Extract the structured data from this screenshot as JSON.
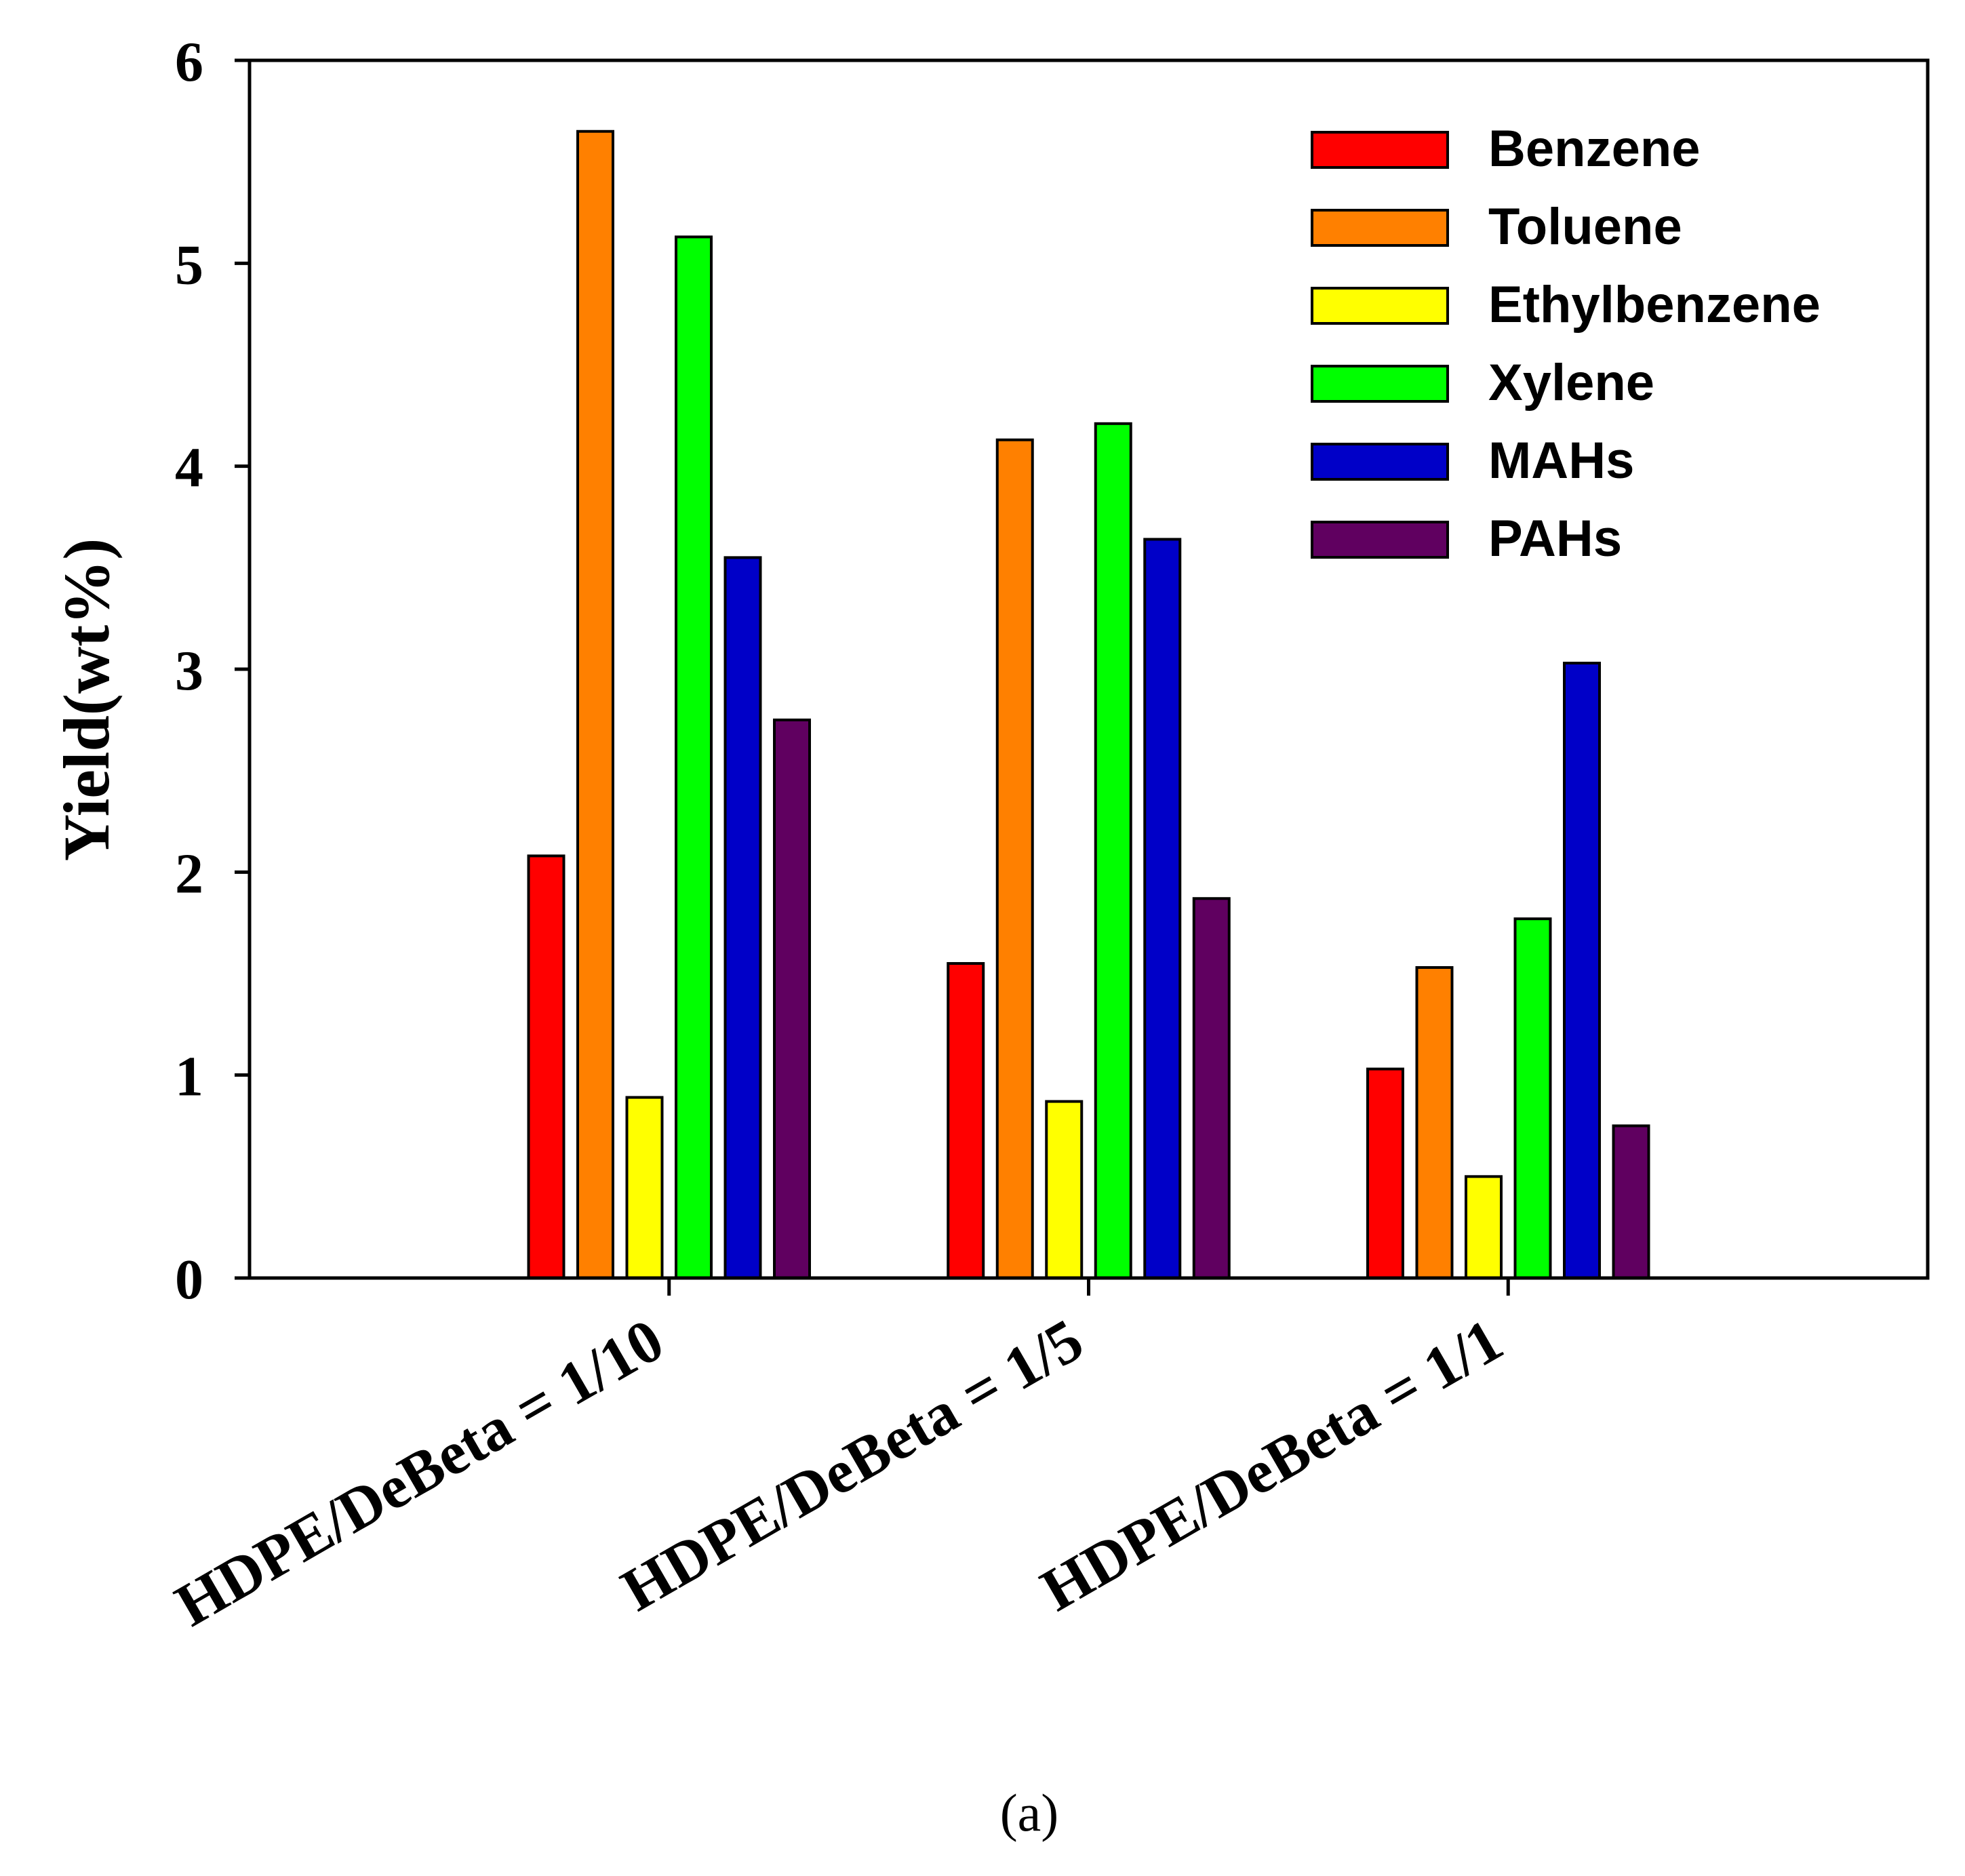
{
  "chart_data": {
    "type": "bar",
    "title": "",
    "xlabel": "",
    "ylabel": "Yield(wt%)",
    "ylim": [
      0,
      6
    ],
    "yticks": [
      0,
      1,
      2,
      3,
      4,
      5,
      6
    ],
    "grid": false,
    "legend_position": "top-right",
    "categories": [
      "HDPE/DeBeta = 1/10",
      "HDPE/DeBeta = 1/5",
      "HDPE/DeBeta = 1/1"
    ],
    "series": [
      {
        "name": "Benzene",
        "color": "#ff0000",
        "values": [
          2.08,
          1.55,
          1.03
        ]
      },
      {
        "name": "Toluene",
        "color": "#ff8000",
        "values": [
          5.65,
          4.13,
          1.53
        ]
      },
      {
        "name": "Ethylbenzene",
        "color": "#ffff00",
        "values": [
          0.89,
          0.87,
          0.5
        ]
      },
      {
        "name": "Xylene",
        "color": "#00ff00",
        "values": [
          5.13,
          4.21,
          1.77
        ]
      },
      {
        "name": "MAHs",
        "color": "#0000c8",
        "values": [
          3.55,
          3.64,
          3.03
        ]
      },
      {
        "name": "PAHs",
        "color": "#600060",
        "values": [
          2.75,
          1.87,
          0.75
        ]
      }
    ],
    "caption": "(a)"
  }
}
